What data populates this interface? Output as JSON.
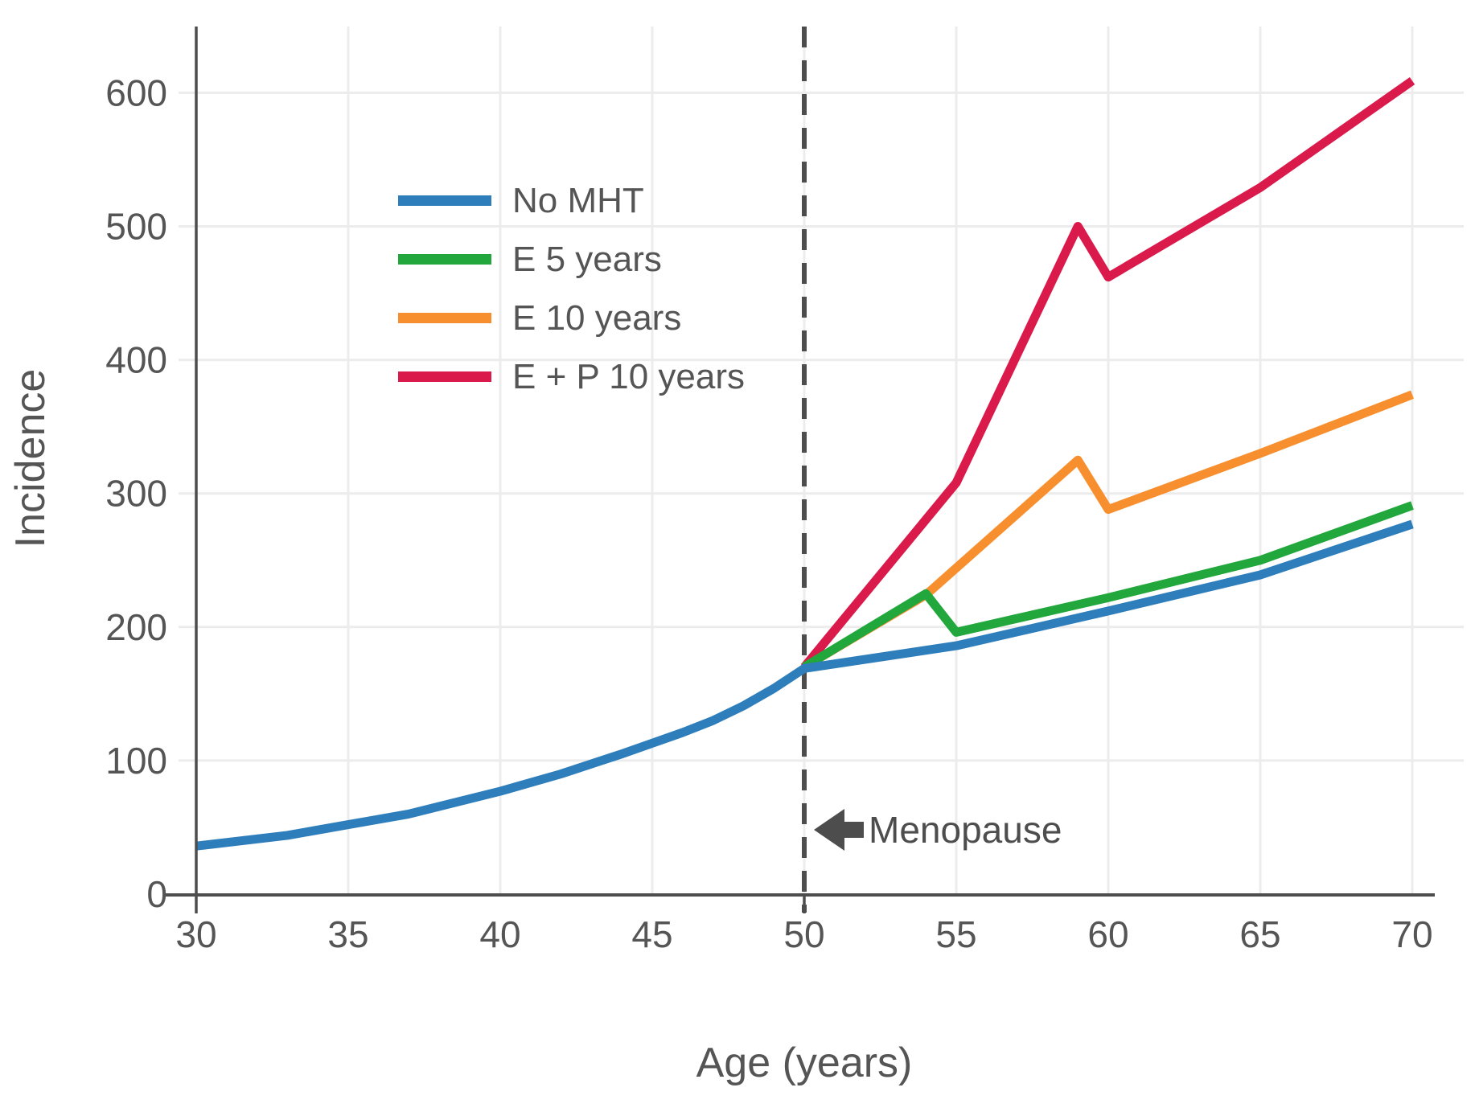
{
  "chart_data": {
    "type": "line",
    "title": "",
    "xlabel": "Age (years)",
    "ylabel": "Incidence",
    "xlim": [
      30,
      70
    ],
    "ylim": [
      0,
      650
    ],
    "x_ticks": [
      30,
      35,
      40,
      45,
      50,
      55,
      60,
      65,
      70
    ],
    "x_tick_marks": [
      30,
      50
    ],
    "y_ticks": [
      0,
      100,
      200,
      300,
      400,
      500,
      600
    ],
    "grid": true,
    "legend_position": "upper-left-inside",
    "series": [
      {
        "name": "No MHT",
        "color": "#2E7EBC",
        "points": [
          [
            30,
            36
          ],
          [
            33,
            44
          ],
          [
            35,
            52
          ],
          [
            37,
            60
          ],
          [
            40,
            77
          ],
          [
            42,
            90
          ],
          [
            44,
            105
          ],
          [
            45,
            113
          ],
          [
            46,
            121
          ],
          [
            47,
            130
          ],
          [
            48,
            141
          ],
          [
            49,
            154
          ],
          [
            50,
            169
          ],
          [
            55,
            186
          ],
          [
            60,
            212
          ],
          [
            65,
            239
          ],
          [
            70,
            277
          ]
        ]
      },
      {
        "name": "E 5 years",
        "color": "#21A73C",
        "points": [
          [
            50,
            170
          ],
          [
            54,
            225
          ],
          [
            55,
            196
          ],
          [
            60,
            222
          ],
          [
            65,
            250
          ],
          [
            70,
            291
          ]
        ]
      },
      {
        "name": "E 10 years",
        "color": "#F88F2F",
        "points": [
          [
            50,
            170
          ],
          [
            54,
            224
          ],
          [
            59,
            325
          ],
          [
            60,
            288
          ],
          [
            65,
            330
          ],
          [
            70,
            374
          ]
        ]
      },
      {
        "name": "E + P 10 years",
        "color": "#DA1A4B",
        "points": [
          [
            50,
            170
          ],
          [
            55,
            308
          ],
          [
            59,
            500
          ],
          [
            60,
            462
          ],
          [
            65,
            529
          ],
          [
            70,
            609
          ]
        ]
      }
    ],
    "reference_line": {
      "x": 50,
      "style": "dashed",
      "color": "#4d4d4d"
    },
    "annotations": [
      {
        "text": "Menopause",
        "arrow": "left",
        "x": 50,
        "y": 48
      }
    ],
    "axis_color": "#4d4d4d",
    "grid_color": "#ececec",
    "tick_label_color": "#555555"
  }
}
